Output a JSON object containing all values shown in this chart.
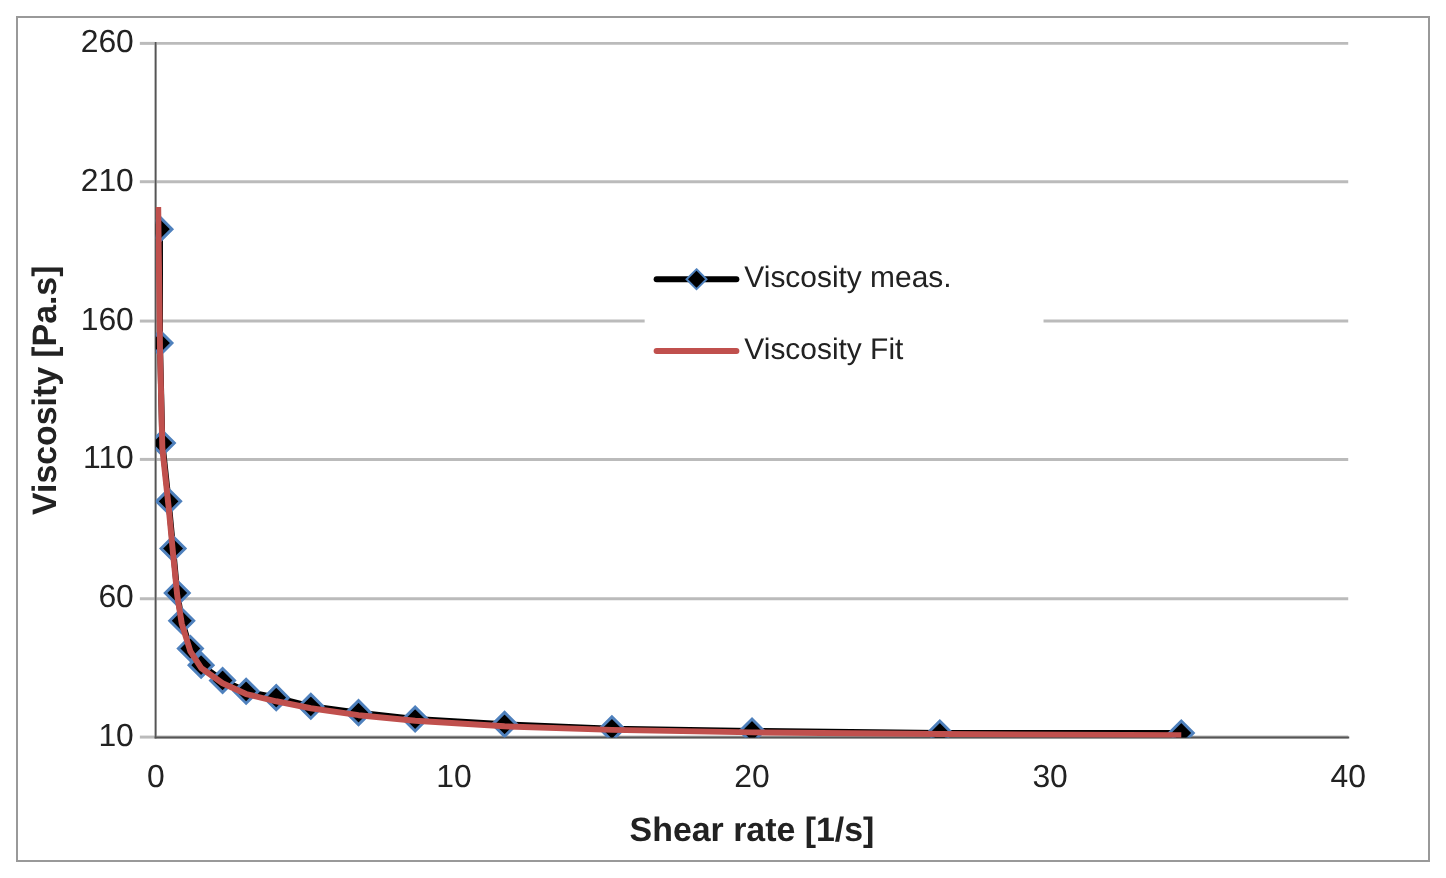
{
  "chart_data": {
    "type": "line",
    "xlabel": "Shear rate [1/s]",
    "ylabel": "Viscosity [Pa.s]",
    "xlim": [
      0,
      40
    ],
    "xticks": [
      0,
      10,
      20,
      30,
      40
    ],
    "ylim": [
      10,
      260
    ],
    "yticks": [
      10,
      60,
      110,
      160,
      210,
      260
    ],
    "grid": "y",
    "legend": "top right",
    "marker": "diamond",
    "line_style": "solid",
    "series": [
      {
        "name": "Viscosity meas.",
        "color": "#000000",
        "x": [
          0.14,
          0.14,
          0.22,
          0.43,
          0.58,
          0.72,
          0.87,
          1.16,
          1.52,
          2.24,
          3.03,
          4.04,
          5.2,
          6.8,
          8.7,
          11.7,
          15.3,
          20,
          26.3,
          34.4
        ],
        "values": [
          193,
          152,
          116,
          95,
          78,
          62,
          52,
          42,
          36,
          30.5,
          26.6,
          24.3,
          21.2,
          18.9,
          16.6,
          14.7,
          13.1,
          12.3,
          11.6,
          11.6
        ]
      },
      {
        "name": "Viscosity Fit",
        "color": "#c0504d",
        "marker": "none",
        "x": [
          0.08,
          0.14,
          0.22,
          0.43,
          0.58,
          0.72,
          0.87,
          1.16,
          1.52,
          2.24,
          3.03,
          4.04,
          5.2,
          6.8,
          8.7,
          11.7,
          15.3,
          20,
          26.3,
          34.4
        ],
        "values": [
          201,
          150,
          114,
          93,
          76,
          61,
          51,
          41,
          35,
          29.5,
          25.6,
          23,
          20.5,
          18,
          16,
          14,
          12.7,
          11.8,
          11.2,
          10.8
        ]
      }
    ]
  }
}
